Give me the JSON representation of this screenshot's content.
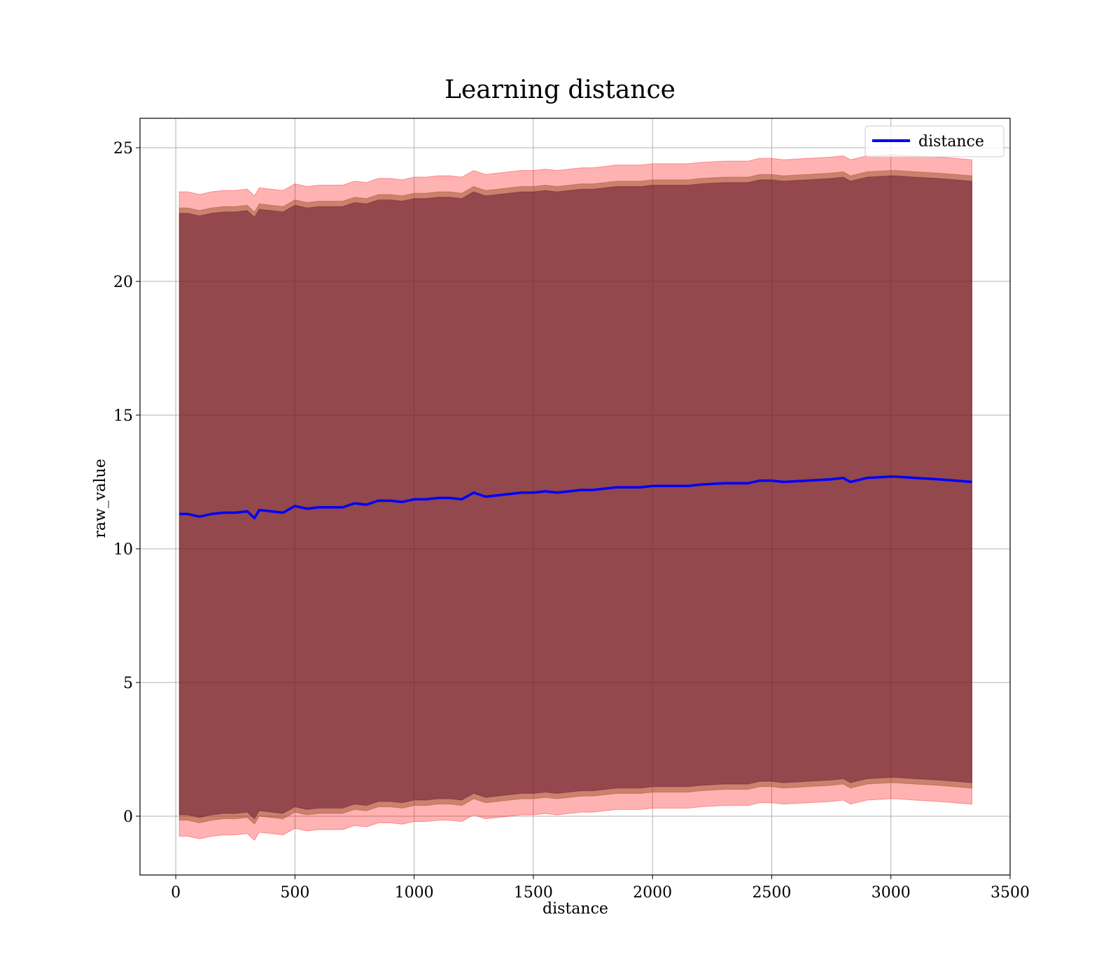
{
  "chart_data": {
    "type": "line",
    "title": "Learning distance",
    "xlabel": "distance",
    "ylabel": "raw_value",
    "xlim": [
      -150,
      3500
    ],
    "ylim": [
      -2.2,
      26.1
    ],
    "xticks": [
      "0",
      "500",
      "1000",
      "1500",
      "2000",
      "2500",
      "3000",
      "3500"
    ],
    "yticks": [
      "0",
      "5",
      "10",
      "15",
      "20",
      "25"
    ],
    "grid": true,
    "legend": {
      "position": "top-right",
      "entries": [
        {
          "label": "distance",
          "color": "#0000ff"
        }
      ]
    },
    "colors": {
      "line": "#0000ff",
      "outer_band": "#ff0000",
      "middle_band": "#8b4513",
      "inner_band": "#5a0f2e"
    },
    "series": [
      {
        "name": "distance",
        "x": [
          15,
          50,
          100,
          150,
          200,
          250,
          300,
          330,
          350,
          400,
          450,
          500,
          550,
          600,
          650,
          700,
          750,
          800,
          850,
          900,
          950,
          1000,
          1050,
          1100,
          1150,
          1200,
          1250,
          1300,
          1350,
          1400,
          1450,
          1500,
          1550,
          1600,
          1650,
          1700,
          1750,
          1800,
          1850,
          1900,
          1950,
          2000,
          2050,
          2100,
          2150,
          2200,
          2300,
          2400,
          2450,
          2500,
          2550,
          2650,
          2750,
          2800,
          2830,
          2900,
          3000,
          3020,
          3100,
          3200,
          3340
        ],
        "y": [
          11.3,
          11.3,
          11.2,
          11.3,
          11.35,
          11.35,
          11.4,
          11.15,
          11.45,
          11.4,
          11.35,
          11.6,
          11.5,
          11.55,
          11.55,
          11.55,
          11.7,
          11.65,
          11.8,
          11.8,
          11.75,
          11.85,
          11.85,
          11.9,
          11.9,
          11.85,
          12.1,
          11.95,
          12.0,
          12.05,
          12.1,
          12.1,
          12.15,
          12.1,
          12.15,
          12.2,
          12.2,
          12.25,
          12.3,
          12.3,
          12.3,
          12.35,
          12.35,
          12.35,
          12.35,
          12.4,
          12.45,
          12.45,
          12.55,
          12.55,
          12.5,
          12.55,
          12.6,
          12.65,
          12.5,
          12.65,
          12.7,
          12.7,
          12.65,
          12.6,
          12.5
        ],
        "band_outer_offset": 12.05,
        "band_middle_offset": 11.45,
        "band_inner_offset": 11.25
      }
    ]
  }
}
